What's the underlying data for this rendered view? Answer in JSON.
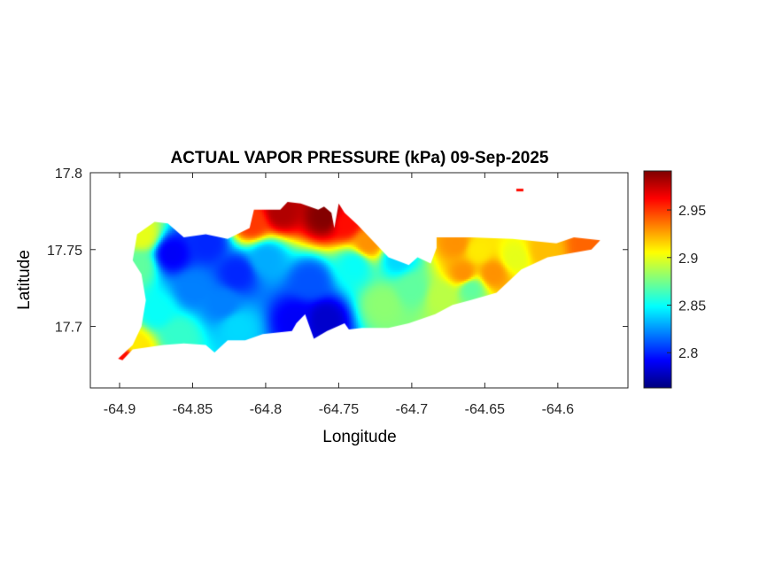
{
  "chart_data": {
    "type": "heatmap",
    "title": "ACTUAL VAPOR PRESSURE (kPa) 09-Sep-2025",
    "xlabel": "Longitude",
    "ylabel": "Latitude",
    "xlim": [
      -64.92,
      -64.552
    ],
    "ylim": [
      17.66,
      17.8
    ],
    "xticks": [
      -64.9,
      -64.85,
      -64.8,
      -64.75,
      -64.7,
      -64.65,
      -64.6
    ],
    "xtick_labels": [
      "-64.9",
      "-64.85",
      "-64.8",
      "-64.75",
      "-64.7",
      "-64.65",
      "-64.6"
    ],
    "yticks": [
      17.7,
      17.75,
      17.8
    ],
    "ytick_labels": [
      "17.7",
      "17.75",
      "17.8"
    ],
    "colormap": "jet",
    "clim": [
      2.763,
      2.991
    ],
    "colorbar_ticks": [
      2.8,
      2.85,
      2.9,
      2.95
    ],
    "colorbar_tick_labels": [
      "2.8",
      "2.85",
      "2.9",
      "2.95"
    ],
    "grid": false,
    "island_outline": [
      [
        -64.901,
        17.679
      ],
      [
        -64.891,
        17.688
      ],
      [
        -64.885,
        17.7
      ],
      [
        -64.882,
        17.717
      ],
      [
        -64.885,
        17.734
      ],
      [
        -64.891,
        17.743
      ],
      [
        -64.888,
        17.76
      ],
      [
        -64.876,
        17.768
      ],
      [
        -64.867,
        17.767
      ],
      [
        -64.856,
        17.758
      ],
      [
        -64.841,
        17.76
      ],
      [
        -64.826,
        17.757
      ],
      [
        -64.811,
        17.764
      ],
      [
        -64.808,
        17.776
      ],
      [
        -64.79,
        17.776
      ],
      [
        -64.785,
        17.781
      ],
      [
        -64.776,
        17.78
      ],
      [
        -64.764,
        17.776
      ],
      [
        -64.76,
        17.778
      ],
      [
        -64.755,
        17.774
      ],
      [
        -64.753,
        17.764
      ],
      [
        -64.75,
        17.78
      ],
      [
        -64.746,
        17.774
      ],
      [
        -64.737,
        17.766
      ],
      [
        -64.725,
        17.754
      ],
      [
        -64.716,
        17.745
      ],
      [
        -64.702,
        17.74
      ],
      [
        -64.696,
        17.745
      ],
      [
        -64.687,
        17.741
      ],
      [
        -64.683,
        17.751
      ],
      [
        -64.683,
        17.758
      ],
      [
        -64.66,
        17.758
      ],
      [
        -64.631,
        17.757
      ],
      [
        -64.601,
        17.754
      ],
      [
        -64.589,
        17.758
      ],
      [
        -64.571,
        17.756
      ],
      [
        -64.577,
        17.75
      ],
      [
        -64.589,
        17.748
      ],
      [
        -64.607,
        17.745
      ],
      [
        -64.625,
        17.737
      ],
      [
        -64.642,
        17.722
      ],
      [
        -64.66,
        17.717
      ],
      [
        -64.672,
        17.714
      ],
      [
        -64.684,
        17.708
      ],
      [
        -64.702,
        17.702
      ],
      [
        -64.716,
        17.699
      ],
      [
        -64.734,
        17.699
      ],
      [
        -64.743,
        17.698
      ],
      [
        -64.746,
        17.702
      ],
      [
        -64.758,
        17.697
      ],
      [
        -64.767,
        17.692
      ],
      [
        -64.773,
        17.708
      ],
      [
        -64.779,
        17.702
      ],
      [
        -64.782,
        17.697
      ],
      [
        -64.802,
        17.695
      ],
      [
        -64.814,
        17.691
      ],
      [
        -64.826,
        17.691
      ],
      [
        -64.835,
        17.683
      ],
      [
        -64.841,
        17.688
      ],
      [
        -64.856,
        17.689
      ],
      [
        -64.87,
        17.688
      ],
      [
        -64.891,
        17.685
      ],
      [
        -64.898,
        17.678
      ]
    ],
    "islet": {
      "lon": -64.626,
      "lat": 17.789,
      "value": 2.96
    },
    "samples": [
      [
        -64.79,
        17.775,
        2.98
      ],
      [
        -64.76,
        17.772,
        2.99
      ],
      [
        -64.745,
        17.768,
        2.96
      ],
      [
        -64.81,
        17.768,
        2.95
      ],
      [
        -64.73,
        17.755,
        2.93
      ],
      [
        -64.885,
        17.76,
        2.9
      ],
      [
        -64.888,
        17.74,
        2.87
      ],
      [
        -64.865,
        17.748,
        2.79
      ],
      [
        -64.84,
        17.755,
        2.8
      ],
      [
        -64.82,
        17.735,
        2.8
      ],
      [
        -64.77,
        17.73,
        2.81
      ],
      [
        -64.76,
        17.705,
        2.78
      ],
      [
        -64.78,
        17.705,
        2.79
      ],
      [
        -64.85,
        17.725,
        2.82
      ],
      [
        -64.8,
        17.745,
        2.83
      ],
      [
        -64.83,
        17.715,
        2.82
      ],
      [
        -64.875,
        17.71,
        2.85
      ],
      [
        -64.86,
        17.695,
        2.86
      ],
      [
        -64.82,
        17.7,
        2.84
      ],
      [
        -64.74,
        17.74,
        2.85
      ],
      [
        -64.71,
        17.745,
        2.84
      ],
      [
        -64.72,
        17.715,
        2.88
      ],
      [
        -64.7,
        17.725,
        2.87
      ],
      [
        -64.68,
        17.72,
        2.89
      ],
      [
        -64.665,
        17.735,
        2.93
      ],
      [
        -64.645,
        17.735,
        2.93
      ],
      [
        -64.655,
        17.75,
        2.91
      ],
      [
        -64.63,
        17.745,
        2.9
      ],
      [
        -64.66,
        17.725,
        2.87
      ],
      [
        -64.61,
        17.75,
        2.92
      ],
      [
        -64.58,
        17.754,
        2.94
      ],
      [
        -64.67,
        17.755,
        2.93
      ],
      [
        -64.897,
        17.68,
        2.96
      ],
      [
        -64.89,
        17.688,
        2.91
      ]
    ]
  }
}
